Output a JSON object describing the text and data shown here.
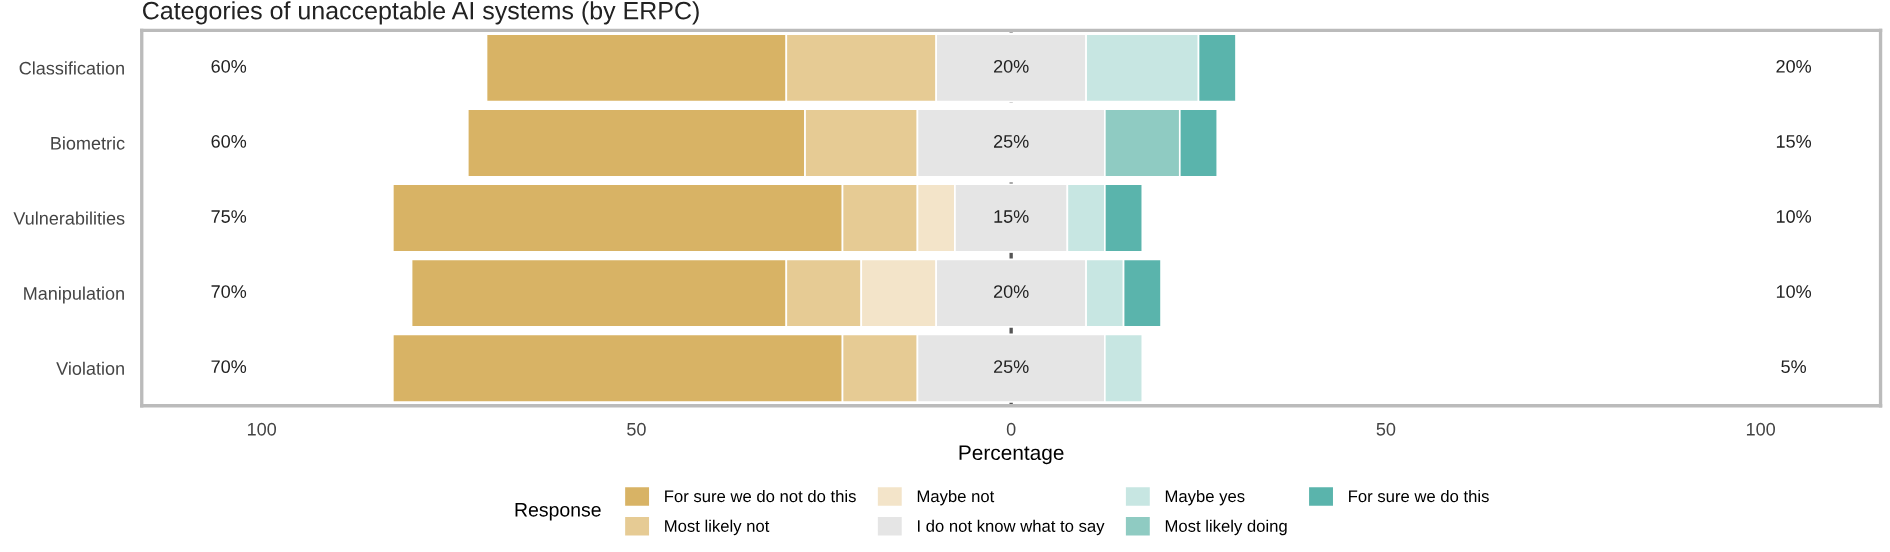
{
  "chart_data": {
    "type": "bar",
    "orientation": "horizontal",
    "title": "Categories of unacceptable AI systems (by ERPC)",
    "xlabel": "Percentage",
    "legend_title": "Response",
    "legend": "bottom",
    "grid": false,
    "categories": [
      "Classification",
      "Biometric",
      "Vulnerabilities",
      "Manipulation",
      "Violation"
    ],
    "xlim": [
      -116,
      116
    ],
    "xticks": [
      {
        "value": -100,
        "label": "100"
      },
      {
        "value": -50,
        "label": "50"
      },
      0,
      50,
      100
    ],
    "series": [
      {
        "name": "For sure we do not do this",
        "color": "#d8b365",
        "values": [
          40,
          45,
          60,
          50,
          60
        ],
        "base": [
          -70,
          -72.5,
          -82.5,
          -80,
          -82.5
        ]
      },
      {
        "name": "Most likely not",
        "color": "#e6cb94",
        "values": [
          20,
          15,
          10,
          10,
          10
        ],
        "base": [
          -30,
          -27.5,
          -22.5,
          -30,
          -22.5
        ]
      },
      {
        "name": "Maybe not",
        "color": "#f3e4c9",
        "values": [
          null,
          null,
          5,
          10,
          null
        ],
        "base": [
          null,
          null,
          -12.5,
          -20,
          null
        ]
      },
      {
        "name": "I do not know what to say",
        "color": "#e5e5e5",
        "values": [
          20,
          25,
          15,
          20,
          25
        ],
        "base": [
          -10,
          -12.5,
          -7.5,
          -10,
          -12.5
        ],
        "value_labels": [
          "20%",
          "25%",
          "15%",
          "20%",
          "25%"
        ]
      },
      {
        "name": "Maybe yes",
        "color": "#c7e6e2",
        "values": [
          15,
          null,
          5,
          5,
          5
        ],
        "base": [
          10,
          null,
          7.5,
          10,
          12.5
        ]
      },
      {
        "name": "Most likely doing",
        "color": "#8fcbc2",
        "values": [
          null,
          10,
          null,
          null,
          null
        ],
        "base": [
          null,
          12.5,
          null,
          null,
          null
        ]
      },
      {
        "name": "For sure we do this",
        "color": "#5ab4ac",
        "values": [
          5,
          5,
          5,
          5,
          null
        ],
        "base": [
          25,
          22.5,
          12.5,
          15,
          null
        ]
      }
    ],
    "ref_lines": [
      {
        "axis": "x",
        "value": 0,
        "color": "#555555",
        "line_style": "dashed"
      }
    ],
    "annotations": [
      "60%",
      "60%",
      "75%",
      "70%",
      "70%",
      "20%",
      "15%",
      "10%",
      "10%",
      "5%"
    ]
  }
}
